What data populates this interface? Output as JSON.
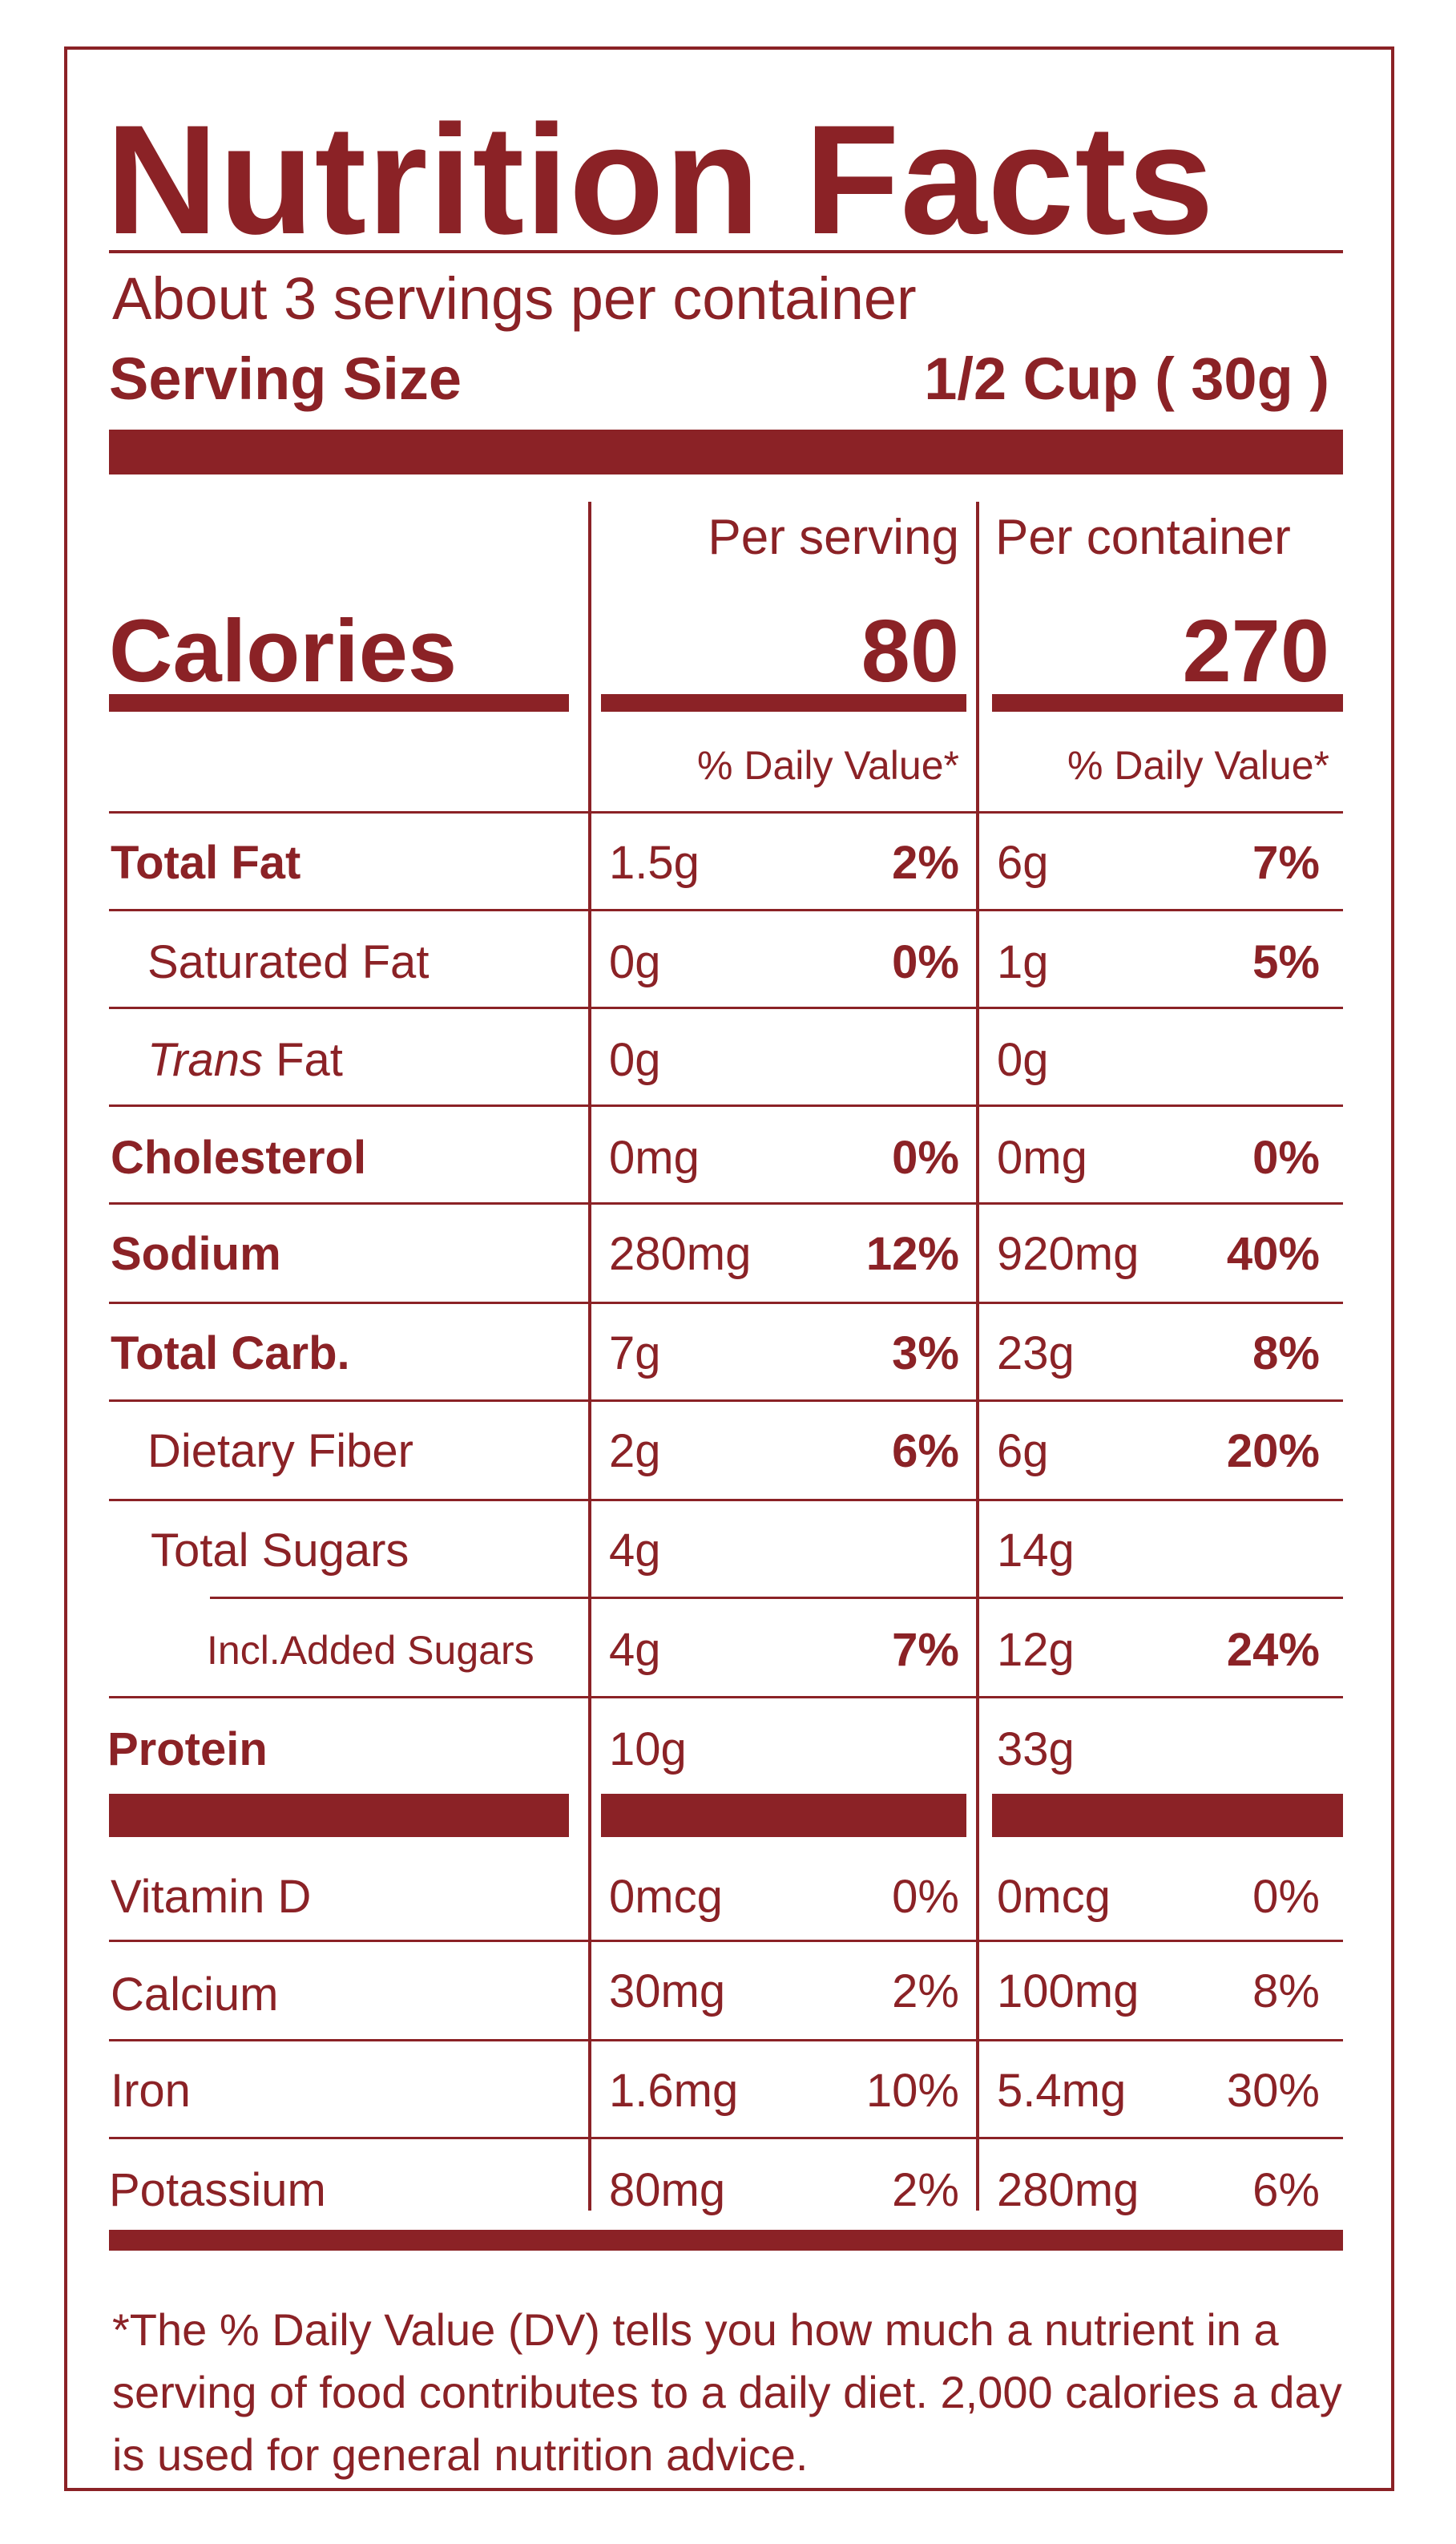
{
  "label": {
    "title": "Nutrition Facts",
    "servings_per_container": "About 3 servings per container",
    "serving_size_label": "Serving Size",
    "serving_size_value": "1/2 Cup ( 30g )",
    "col_per_serving": "Per serving",
    "col_per_container": "Per container",
    "calories_label": "Calories",
    "calories_per_serving": "80",
    "calories_per_container": "270",
    "dv_header": "% Daily Value*",
    "rows": [
      {
        "name_pre": "",
        "name_it": "",
        "name": "Total Fat",
        "s_amt": "1.5g",
        "s_dv": "2%",
        "c_amt": "6g",
        "c_dv": "7%"
      },
      {
        "name_pre": "",
        "name_it": "",
        "name": "Saturated Fat",
        "s_amt": "0g",
        "s_dv": "0%",
        "c_amt": "1g",
        "c_dv": "5%"
      },
      {
        "name_pre": "",
        "name_it": "Trans",
        "name": " Fat",
        "s_amt": "0g",
        "s_dv": "",
        "c_amt": "0g",
        "c_dv": ""
      },
      {
        "name_pre": "",
        "name_it": "",
        "name": "Cholesterol",
        "s_amt": "0mg",
        "s_dv": "0%",
        "c_amt": "0mg",
        "c_dv": "0%"
      },
      {
        "name_pre": "",
        "name_it": "",
        "name": "Sodium",
        "s_amt": "280mg",
        "s_dv": "12%",
        "c_amt": "920mg",
        "c_dv": "40%"
      },
      {
        "name_pre": "",
        "name_it": "",
        "name": "Total Carb.",
        "s_amt": "7g",
        "s_dv": "3%",
        "c_amt": "23g",
        "c_dv": "8%"
      },
      {
        "name_pre": "",
        "name_it": "",
        "name": "Dietary Fiber",
        "s_amt": "2g",
        "s_dv": "6%",
        "c_amt": "6g",
        "c_dv": "20%"
      },
      {
        "name_pre": "",
        "name_it": "",
        "name": "Total Sugars",
        "s_amt": "4g",
        "s_dv": "",
        "c_amt": "14g",
        "c_dv": ""
      },
      {
        "name_pre": "",
        "name_it": "",
        "name": "Incl.Added Sugars",
        "s_amt": "4g",
        "s_dv": "7%",
        "c_amt": "12g",
        "c_dv": "24%"
      },
      {
        "name_pre": "",
        "name_it": "",
        "name": "Protein",
        "s_amt": "10g",
        "s_dv": "",
        "c_amt": "33g",
        "c_dv": ""
      }
    ],
    "vitamins": [
      {
        "name": "Vitamin D",
        "s_amt": "0mcg",
        "s_dv": "0%",
        "c_amt": "0mcg",
        "c_dv": "0%"
      },
      {
        "name": "Calcium",
        "s_amt": "30mg",
        "s_dv": "2%",
        "c_amt": "100mg",
        "c_dv": "8%"
      },
      {
        "name": "Iron",
        "s_amt": "1.6mg",
        "s_dv": "10%",
        "c_amt": "5.4mg",
        "c_dv": "30%"
      },
      {
        "name": "Potassium",
        "s_amt": "80mg",
        "s_dv": "2%",
        "c_amt": "280mg",
        "c_dv": "6%"
      }
    ],
    "footnote": "*The % Daily Value (DV) tells you how much a nutrient in a serving of food contributes to a daily diet. 2,000 calories a day is used for general nutrition advice."
  },
  "colors": {
    "ink": "#8b2226",
    "background": "#ffffff"
  }
}
